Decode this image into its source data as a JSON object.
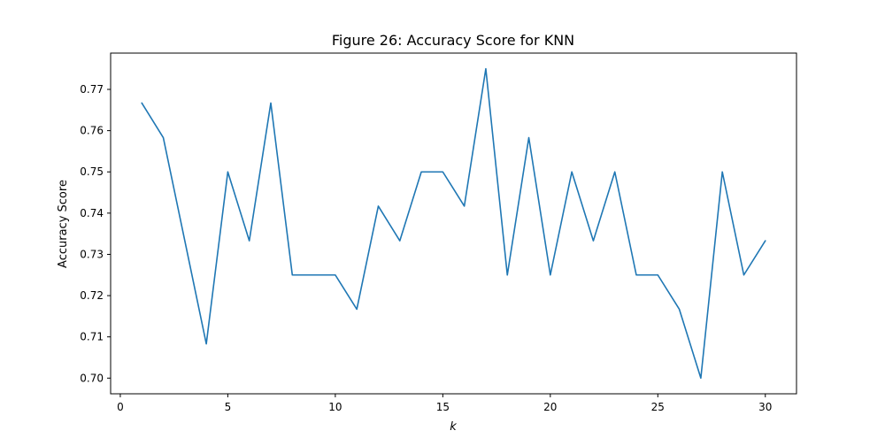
{
  "chart_data": {
    "type": "line",
    "title": "Figure 26: Accuracy Score for KNN",
    "xlabel": "k",
    "ylabel": "Accuracy Score",
    "xlim": [
      -0.45,
      31.45
    ],
    "ylim": [
      0.6962,
      0.7788
    ],
    "xticks": [
      0,
      5,
      10,
      15,
      20,
      25,
      30
    ],
    "yticks": [
      0.7,
      0.71,
      0.72,
      0.73,
      0.74,
      0.75,
      0.76,
      0.77
    ],
    "xtick_labels": [
      "0",
      "5",
      "10",
      "15",
      "20",
      "25",
      "30"
    ],
    "ytick_labels": [
      "0.70",
      "0.71",
      "0.72",
      "0.73",
      "0.74",
      "0.75",
      "0.76",
      "0.77"
    ],
    "grid": false,
    "series": [
      {
        "color": "#1f77b4",
        "x": [
          1,
          2,
          3,
          4,
          5,
          6,
          7,
          8,
          9,
          10,
          11,
          12,
          13,
          14,
          15,
          16,
          17,
          18,
          19,
          20,
          21,
          22,
          23,
          24,
          25,
          26,
          27,
          28,
          29,
          30
        ],
        "y": [
          0.7667,
          0.7583,
          0.7333,
          0.7083,
          0.75,
          0.7333,
          0.7667,
          0.725,
          0.725,
          0.725,
          0.7167,
          0.7417,
          0.7333,
          0.75,
          0.75,
          0.7417,
          0.775,
          0.725,
          0.7583,
          0.725,
          0.75,
          0.7333,
          0.75,
          0.725,
          0.725,
          0.7167,
          0.7,
          0.75,
          0.725,
          0.7333
        ]
      }
    ]
  }
}
